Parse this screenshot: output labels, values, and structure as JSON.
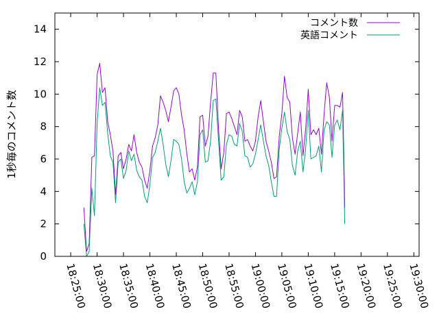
{
  "chart_data": {
    "type": "line",
    "title": "",
    "xlabel": "",
    "ylabel": "1秒毎のコメント数",
    "ylim": [
      0,
      15
    ],
    "yticks": [
      0,
      2,
      4,
      6,
      8,
      10,
      12,
      14
    ],
    "xlim": [
      "18:22:00",
      "19:31:00"
    ],
    "xticks": [
      "18:25:00",
      "18:30:00",
      "18:35:00",
      "18:40:00",
      "18:45:00",
      "18:50:00",
      "18:55:00",
      "19:00:00",
      "19:05:00",
      "19:10:00",
      "19:15:00",
      "19:20:00",
      "19:25:00",
      "19:30:00"
    ],
    "grid": false,
    "legend_position": "top-right",
    "series": [
      {
        "name": "コメント数",
        "color": "#9400d3",
        "points": [
          [
            "18:27:30",
            3.0
          ],
          [
            "18:28:00",
            0.3
          ],
          [
            "18:28:30",
            0.8
          ],
          [
            "18:29:00",
            6.1
          ],
          [
            "18:29:30",
            6.2
          ],
          [
            "18:30:00",
            11.2
          ],
          [
            "18:30:30",
            11.9
          ],
          [
            "18:31:00",
            10.1
          ],
          [
            "18:31:30",
            10.4
          ],
          [
            "18:32:00",
            8.3
          ],
          [
            "18:32:30",
            7.5
          ],
          [
            "18:33:00",
            6.5
          ],
          [
            "18:33:30",
            3.8
          ],
          [
            "18:34:00",
            6.2
          ],
          [
            "18:34:30",
            6.4
          ],
          [
            "18:35:00",
            5.4
          ],
          [
            "18:35:30",
            6.0
          ],
          [
            "18:36:00",
            6.9
          ],
          [
            "18:36:30",
            6.5
          ],
          [
            "18:37:00",
            7.5
          ],
          [
            "18:37:30",
            6.4
          ],
          [
            "18:38:00",
            5.8
          ],
          [
            "18:38:30",
            5.5
          ],
          [
            "18:39:00",
            4.7
          ],
          [
            "18:39:30",
            4.2
          ],
          [
            "18:40:00",
            5.3
          ],
          [
            "18:40:30",
            6.8
          ],
          [
            "18:41:00",
            7.3
          ],
          [
            "18:41:30",
            8.1
          ],
          [
            "18:42:00",
            9.9
          ],
          [
            "18:42:30",
            9.5
          ],
          [
            "18:43:00",
            9.0
          ],
          [
            "18:43:30",
            8.3
          ],
          [
            "18:44:00",
            9.2
          ],
          [
            "18:44:30",
            10.2
          ],
          [
            "18:45:00",
            10.4
          ],
          [
            "18:45:30",
            10.0
          ],
          [
            "18:46:00",
            8.7
          ],
          [
            "18:46:30",
            7.8
          ],
          [
            "18:47:00",
            6.3
          ],
          [
            "18:47:30",
            5.2
          ],
          [
            "18:48:00",
            5.4
          ],
          [
            "18:48:30",
            4.7
          ],
          [
            "18:49:00",
            5.5
          ],
          [
            "18:49:30",
            8.6
          ],
          [
            "18:50:00",
            8.7
          ],
          [
            "18:50:30",
            6.8
          ],
          [
            "18:51:00",
            7.4
          ],
          [
            "18:51:30",
            9.5
          ],
          [
            "18:52:00",
            11.3
          ],
          [
            "18:52:30",
            11.3
          ],
          [
            "18:53:00",
            7.9
          ],
          [
            "18:53:30",
            5.4
          ],
          [
            "18:54:00",
            6.4
          ],
          [
            "18:54:30",
            8.8
          ],
          [
            "18:55:00",
            8.9
          ],
          [
            "18:55:30",
            8.5
          ],
          [
            "18:56:00",
            8.0
          ],
          [
            "18:56:30",
            7.5
          ],
          [
            "18:57:00",
            9.0
          ],
          [
            "18:57:30",
            8.6
          ],
          [
            "18:58:00",
            7.1
          ],
          [
            "18:58:30",
            7.2
          ],
          [
            "18:59:00",
            6.8
          ],
          [
            "18:59:30",
            6.5
          ],
          [
            "19:00:00",
            7.1
          ],
          [
            "19:00:30",
            8.6
          ],
          [
            "19:01:00",
            9.6
          ],
          [
            "19:01:30",
            8.3
          ],
          [
            "19:02:00",
            7.1
          ],
          [
            "19:02:30",
            6.5
          ],
          [
            "19:03:00",
            5.8
          ],
          [
            "19:03:30",
            4.8
          ],
          [
            "19:04:00",
            4.9
          ],
          [
            "19:04:30",
            7.4
          ],
          [
            "19:05:00",
            8.8
          ],
          [
            "19:05:30",
            11.1
          ],
          [
            "19:06:00",
            9.8
          ],
          [
            "19:06:30",
            9.5
          ],
          [
            "19:07:00",
            7.3
          ],
          [
            "19:07:30",
            6.3
          ],
          [
            "19:08:00",
            7.6
          ],
          [
            "19:08:30",
            8.9
          ],
          [
            "19:09:00",
            6.2
          ],
          [
            "19:09:30",
            7.8
          ],
          [
            "19:10:00",
            10.3
          ],
          [
            "19:10:30",
            7.5
          ],
          [
            "19:11:00",
            7.8
          ],
          [
            "19:11:30",
            7.5
          ],
          [
            "19:12:00",
            7.9
          ],
          [
            "19:12:30",
            6.3
          ],
          [
            "19:13:00",
            8.8
          ],
          [
            "19:13:30",
            10.7
          ],
          [
            "19:14:00",
            9.8
          ],
          [
            "19:14:30",
            7.1
          ],
          [
            "19:15:00",
            9.3
          ],
          [
            "19:15:30",
            9.3
          ],
          [
            "19:16:00",
            9.2
          ],
          [
            "19:16:30",
            10.1
          ],
          [
            "19:16:45",
            6.3
          ],
          [
            "19:16:55",
            3.0
          ]
        ]
      },
      {
        "name": "英語コメント",
        "color": "#009e73",
        "points": [
          [
            "18:27:30",
            2.0
          ],
          [
            "18:28:00",
            0.0
          ],
          [
            "18:28:30",
            0.3
          ],
          [
            "18:29:00",
            4.2
          ],
          [
            "18:29:30",
            2.5
          ],
          [
            "18:30:00",
            8.2
          ],
          [
            "18:30:30",
            10.4
          ],
          [
            "18:31:00",
            9.3
          ],
          [
            "18:31:30",
            9.5
          ],
          [
            "18:32:00",
            7.6
          ],
          [
            "18:32:30",
            6.2
          ],
          [
            "18:33:00",
            5.8
          ],
          [
            "18:33:30",
            3.3
          ],
          [
            "18:34:00",
            5.8
          ],
          [
            "18:34:30",
            6.0
          ],
          [
            "18:35:00",
            4.8
          ],
          [
            "18:35:30",
            5.3
          ],
          [
            "18:36:00",
            6.5
          ],
          [
            "18:36:30",
            5.9
          ],
          [
            "18:37:00",
            6.3
          ],
          [
            "18:37:30",
            5.3
          ],
          [
            "18:38:00",
            4.9
          ],
          [
            "18:38:30",
            4.7
          ],
          [
            "18:39:00",
            3.7
          ],
          [
            "18:39:30",
            3.3
          ],
          [
            "18:40:00",
            4.4
          ],
          [
            "18:40:30",
            6.1
          ],
          [
            "18:41:00",
            6.4
          ],
          [
            "18:41:30",
            7.1
          ],
          [
            "18:42:00",
            7.9
          ],
          [
            "18:42:30",
            6.9
          ],
          [
            "18:43:00",
            5.7
          ],
          [
            "18:43:30",
            4.9
          ],
          [
            "18:44:00",
            5.9
          ],
          [
            "18:44:30",
            7.2
          ],
          [
            "18:45:00",
            7.1
          ],
          [
            "18:45:30",
            6.9
          ],
          [
            "18:46:00",
            6.0
          ],
          [
            "18:46:30",
            4.6
          ],
          [
            "18:47:00",
            3.9
          ],
          [
            "18:47:30",
            4.2
          ],
          [
            "18:48:00",
            4.6
          ],
          [
            "18:48:30",
            3.8
          ],
          [
            "18:49:00",
            4.6
          ],
          [
            "18:49:30",
            7.5
          ],
          [
            "18:50:00",
            7.8
          ],
          [
            "18:50:30",
            5.8
          ],
          [
            "18:51:00",
            5.9
          ],
          [
            "18:51:30",
            7.1
          ],
          [
            "18:52:00",
            9.6
          ],
          [
            "18:52:30",
            9.7
          ],
          [
            "18:53:00",
            7.1
          ],
          [
            "18:53:30",
            4.7
          ],
          [
            "18:54:00",
            4.9
          ],
          [
            "18:54:30",
            6.9
          ],
          [
            "18:55:00",
            7.5
          ],
          [
            "18:55:30",
            7.4
          ],
          [
            "18:56:00",
            6.9
          ],
          [
            "18:56:30",
            6.8
          ],
          [
            "18:57:00",
            8.2
          ],
          [
            "18:57:30",
            7.7
          ],
          [
            "18:58:00",
            6.2
          ],
          [
            "18:58:30",
            6.1
          ],
          [
            "18:59:00",
            5.5
          ],
          [
            "18:59:30",
            5.7
          ],
          [
            "19:00:00",
            6.3
          ],
          [
            "19:00:30",
            7.2
          ],
          [
            "19:01:00",
            8.1
          ],
          [
            "19:01:30",
            7.1
          ],
          [
            "19:02:00",
            6.2
          ],
          [
            "19:02:30",
            5.6
          ],
          [
            "19:03:00",
            4.6
          ],
          [
            "19:03:30",
            3.7
          ],
          [
            "19:04:00",
            3.7
          ],
          [
            "19:04:30",
            6.6
          ],
          [
            "19:05:00",
            7.9
          ],
          [
            "19:05:30",
            8.9
          ],
          [
            "19:06:00",
            7.7
          ],
          [
            "19:06:30",
            7.2
          ],
          [
            "19:07:00",
            5.6
          ],
          [
            "19:07:30",
            5.0
          ],
          [
            "19:08:00",
            6.5
          ],
          [
            "19:08:30",
            7.1
          ],
          [
            "19:09:00",
            5.2
          ],
          [
            "19:09:30",
            6.6
          ],
          [
            "19:10:00",
            9.0
          ],
          [
            "19:10:30",
            6.0
          ],
          [
            "19:11:00",
            6.1
          ],
          [
            "19:11:30",
            6.2
          ],
          [
            "19:12:00",
            6.8
          ],
          [
            "19:12:30",
            5.2
          ],
          [
            "19:13:00",
            7.8
          ],
          [
            "19:13:30",
            8.3
          ],
          [
            "19:14:00",
            8.1
          ],
          [
            "19:14:30",
            6.1
          ],
          [
            "19:15:00",
            8.1
          ],
          [
            "19:15:30",
            8.4
          ],
          [
            "19:16:00",
            7.8
          ],
          [
            "19:16:30",
            9.0
          ],
          [
            "19:16:45",
            5.0
          ],
          [
            "19:16:55",
            2.0
          ]
        ]
      }
    ]
  }
}
